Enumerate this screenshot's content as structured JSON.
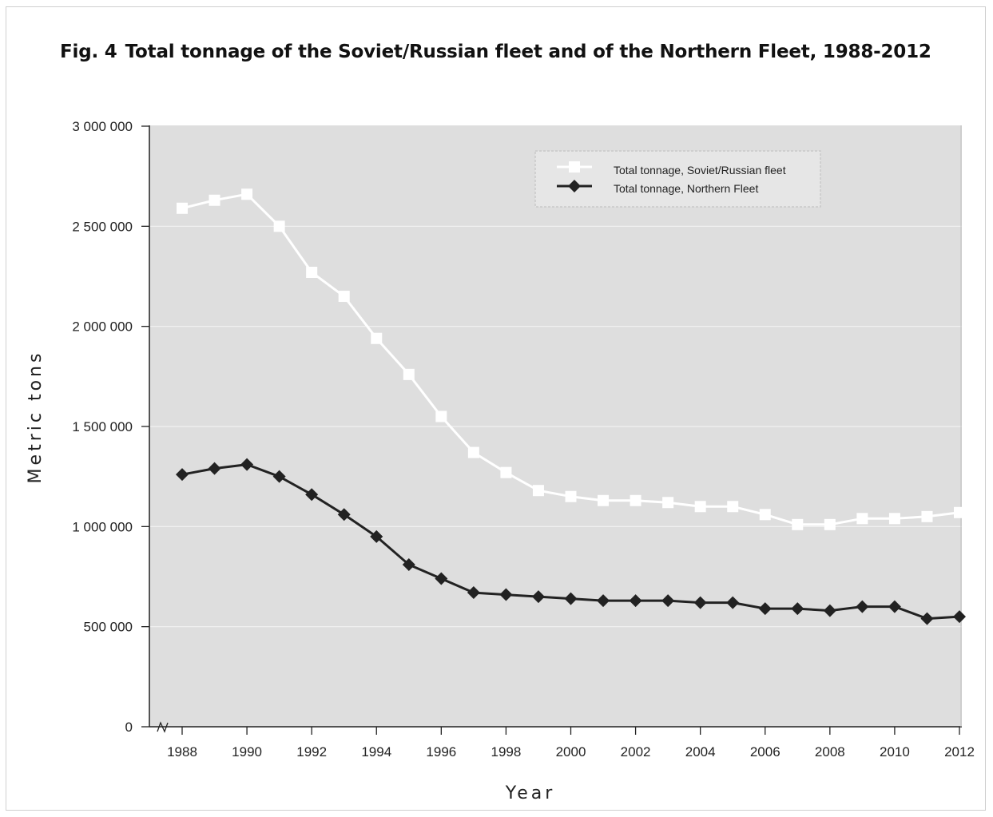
{
  "chart_data": {
    "type": "line",
    "figure_number": "Fig. 4",
    "title": "Total tonnage of the Soviet/Russian fleet and of the Northern Fleet, 1988-2012",
    "xlabel": "Year",
    "ylabel": "Metric tons",
    "ylim": [
      0,
      3000000
    ],
    "yticks": [
      {
        "value": 0,
        "label": "0"
      },
      {
        "value": 500000,
        "label": "500 000"
      },
      {
        "value": 1000000,
        "label": "1 000 000"
      },
      {
        "value": 1500000,
        "label": "1 500 000"
      },
      {
        "value": 2000000,
        "label": "2 000 000"
      },
      {
        "value": 2500000,
        "label": "2 500 000"
      },
      {
        "value": 3000000,
        "label": "3 000 000"
      }
    ],
    "xticks": [
      "1988",
      "1990",
      "1992",
      "1994",
      "1996",
      "1998",
      "2000",
      "2002",
      "2004",
      "2006",
      "2008",
      "2010",
      "2012"
    ],
    "x": [
      1988,
      1989,
      1990,
      1991,
      1992,
      1993,
      1994,
      1995,
      1996,
      1997,
      1998,
      1999,
      2000,
      2001,
      2002,
      2003,
      2004,
      2005,
      2006,
      2007,
      2008,
      2009,
      2010,
      2011,
      2012
    ],
    "grid": true,
    "legend_position": "top-right",
    "colors": {
      "background": "#dedede",
      "grid": "#f2f2f2",
      "soviet": "#ffffff",
      "northern": "#222222"
    },
    "series": [
      {
        "name": "Total tonnage, Soviet/Russian fleet",
        "marker": "square",
        "values": [
          2590000,
          2630000,
          2660000,
          2500000,
          2270000,
          2150000,
          1940000,
          1760000,
          1550000,
          1370000,
          1270000,
          1180000,
          1150000,
          1130000,
          1130000,
          1120000,
          1100000,
          1100000,
          1060000,
          1010000,
          1010000,
          1040000,
          1040000,
          1050000,
          1070000
        ]
      },
      {
        "name": "Total tonnage, Northern Fleet",
        "marker": "diamond",
        "values": [
          1260000,
          1290000,
          1310000,
          1250000,
          1160000,
          1060000,
          950000,
          810000,
          740000,
          670000,
          660000,
          650000,
          640000,
          630000,
          630000,
          630000,
          620000,
          620000,
          590000,
          590000,
          580000,
          600000,
          600000,
          540000,
          550000
        ]
      }
    ]
  }
}
